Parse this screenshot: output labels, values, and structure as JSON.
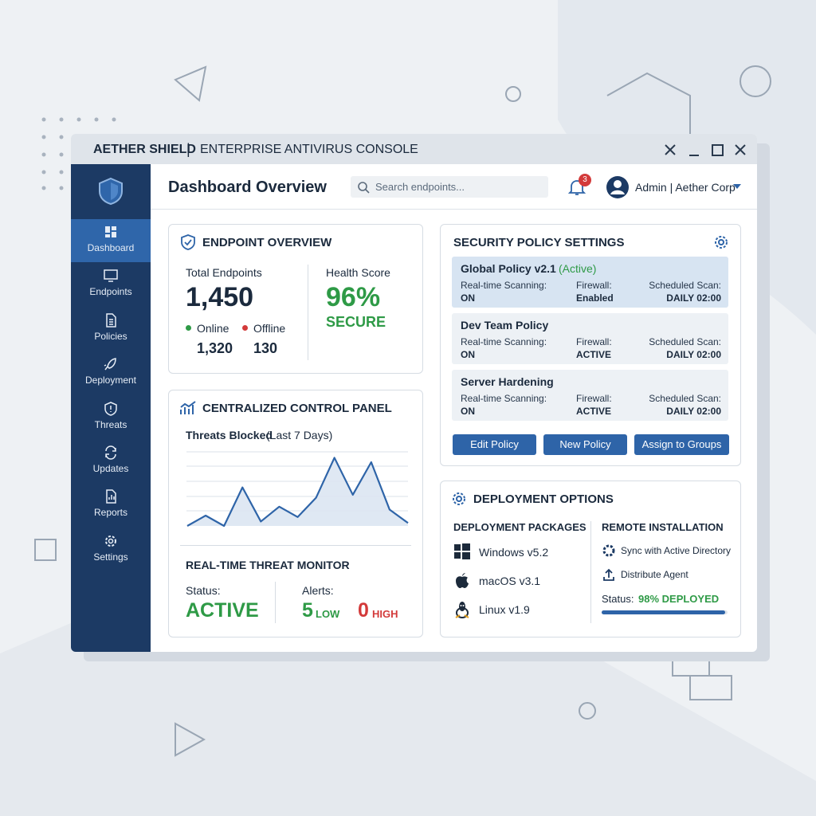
{
  "window": {
    "brand": "AETHER SHIELD",
    "title": "ENTERPRISE ANTIVIRUS CONSOLE"
  },
  "sidebar": {
    "items": [
      "Dashboard",
      "Endpoints",
      "Policies",
      "Deployment",
      "Threats",
      "Updates",
      "Reports",
      "Settings"
    ]
  },
  "header": {
    "title": "Dashboard Overview",
    "search_placeholder": "Search endpoints...",
    "notifications": "3",
    "user": "Admin | Aether Corp"
  },
  "endpoint_overview": {
    "title": "ENDPOINT OVERVIEW",
    "total_label": "Total Endpoints",
    "total": "1,450",
    "online_label": "Online",
    "online": "1,320",
    "offline_label": "Offline",
    "offline": "130",
    "health_label": "Health Score",
    "health": "96%",
    "health_status": "SECURE"
  },
  "control_panel": {
    "title": "CENTRALIZED CONTROL PANEL",
    "chart_title": "Threats Blocked",
    "chart_subtitle": "(Last 7 Days)",
    "chart": {
      "type": "line",
      "values": [
        0,
        0.7,
        0,
        2.6,
        0.3,
        1.3,
        0.6,
        1.9,
        4.6,
        2.1,
        4.3,
        1.1,
        0.2
      ]
    },
    "monitor_title": "REAL-TIME THREAT MONITOR",
    "status_label": "Status:",
    "status": "ACTIVE",
    "alerts_label": "Alerts:",
    "low_count": "5",
    "low_label": "LOW",
    "high_count": "0",
    "high_label": "HIGH"
  },
  "security_policy": {
    "title": "SECURITY POLICY SETTINGS",
    "policies": [
      {
        "name": "Global Policy v2.1",
        "tag": "(Active)",
        "scanning_label": "Real-time Scanning:",
        "scanning": "ON",
        "firewall_label": "Firewall:",
        "firewall": "Enabled",
        "scan_label": "Scheduled Scan:",
        "scan": "DAILY 02:00"
      },
      {
        "name": "Dev Team Policy",
        "scanning_label": "Real-time Scanning:",
        "scanning": "ON",
        "firewall_label": "Firewall:",
        "firewall": "ACTIVE",
        "scan_label": "Scheduled Scan:",
        "scan": "DAILY 02:00"
      },
      {
        "name": "Server Hardening",
        "scanning_label": "Real-time Scanning:",
        "scanning": "ON",
        "firewall_label": "Firewall:",
        "firewall": "ACTIVE",
        "scan_label": "Scheduled Scan:",
        "scan": "DAILY 02:00"
      }
    ],
    "buttons": [
      "Edit Policy",
      "New Policy",
      "Assign to Groups"
    ]
  },
  "deployment": {
    "title": "DEPLOYMENT OPTIONS",
    "packages_title": "DEPLOYMENT PACKAGES",
    "packages": [
      "Windows v5.2",
      "macOS v3.1",
      "Linux v1.9"
    ],
    "remote_title": "REMOTE INSTALLATION",
    "actions": [
      "Sync with Active Directory",
      "Distribute Agent"
    ],
    "status_label": "Status:",
    "status_value": 98,
    "status_text": "98% DEPLOYED"
  }
}
